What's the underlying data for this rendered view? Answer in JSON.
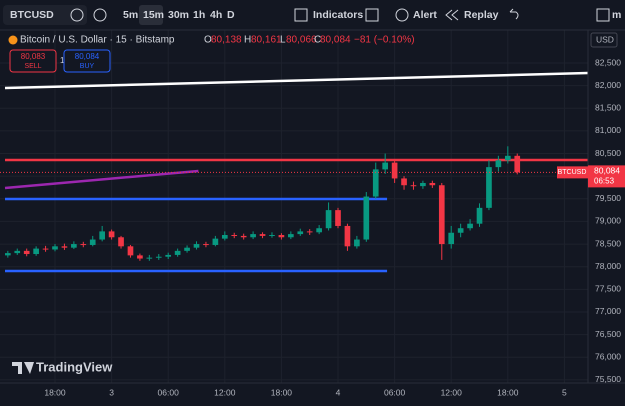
{
  "toolbar": {
    "symbol": "BTCUSD",
    "intervals": [
      "5m",
      "15m",
      "30m",
      "1h",
      "4h",
      "D"
    ],
    "indicators": "Indicators",
    "alert": "Alert",
    "replay": "Replay",
    "more": "m"
  },
  "legend": {
    "title": "Bitcoin / U.S. Dollar · 15 · Bitstamp",
    "o_label": "O",
    "o": "80,138",
    "h_label": "H",
    "h": "80,161",
    "l_label": "L",
    "l": "80,066",
    "c_label": "C",
    "c": "80,084",
    "change": "−81 (−0.10%)"
  },
  "trade": {
    "sell_price": "80,083",
    "sell": "SELL",
    "qty": "1",
    "buy_price": "80,084",
    "buy": "BUY"
  },
  "price_axis": {
    "currency": "USD",
    "tag_symbol": "BTCUSD",
    "tag_price": "80,084",
    "tag_time": "06:53"
  },
  "logo": "TradingView",
  "chart": {
    "type": "candlestick",
    "x": [
      -5,
      -4,
      -3,
      -2,
      -1,
      0,
      1,
      2,
      3,
      4,
      5,
      6,
      7,
      8,
      9,
      10,
      11,
      12,
      13,
      14,
      15,
      16,
      17,
      18,
      19,
      20,
      21,
      22,
      23,
      24,
      25,
      26,
      27,
      28,
      29,
      30,
      31,
      32,
      33,
      34,
      35,
      36,
      37,
      38,
      39,
      40,
      41,
      42,
      43,
      44,
      45,
      46,
      47,
      48,
      49
    ],
    "open": [
      78250,
      78300,
      78350,
      78280,
      78400,
      78380,
      78450,
      78420,
      78500,
      78480,
      78600,
      78780,
      78650,
      78450,
      78250,
      78180,
      78200,
      78220,
      78260,
      78350,
      78420,
      78500,
      78480,
      78620,
      78700,
      78680,
      78650,
      78720,
      78680,
      78700,
      78650,
      78720,
      78780,
      78760,
      78850,
      79250,
      78900,
      78450,
      78600,
      79550,
      80150,
      80300,
      79950,
      79800,
      79780,
      79850,
      79800,
      78500,
      78750,
      78850,
      78950,
      79300,
      80200,
      80350,
      80450
    ],
    "high": [
      78350,
      78400,
      78400,
      78450,
      78460,
      78500,
      78510,
      78560,
      78550,
      78680,
      78900,
      78820,
      78680,
      78480,
      78290,
      78260,
      78280,
      78310,
      78400,
      78470,
      78560,
      78550,
      78680,
      78780,
      78750,
      78730,
      78780,
      78760,
      78760,
      78740,
      78780,
      78840,
      78830,
      78920,
      79420,
      79300,
      78950,
      78680,
      79650,
      80300,
      80500,
      80350,
      80000,
      79880,
      79900,
      79900,
      79850,
      78900,
      78950,
      79050,
      79400,
      80350,
      80450,
      80660,
      80500
    ],
    "low": [
      78200,
      78260,
      78230,
      78240,
      78330,
      78340,
      78370,
      78390,
      78430,
      78450,
      78560,
      78600,
      78400,
      78200,
      78130,
      78130,
      78150,
      78170,
      78220,
      78310,
      78380,
      78430,
      78450,
      78580,
      78630,
      78600,
      78610,
      78630,
      78640,
      78600,
      78610,
      78680,
      78700,
      78720,
      78800,
      78850,
      78350,
      78400,
      78550,
      79500,
      80050,
      79850,
      79700,
      79700,
      79720,
      79740,
      78150,
      78400,
      78650,
      78800,
      78880,
      79250,
      80100,
      80280,
      80040
    ],
    "close": [
      78300,
      78350,
      78280,
      78400,
      78380,
      78450,
      78420,
      78500,
      78480,
      78600,
      78780,
      78650,
      78450,
      78250,
      78180,
      78200,
      78220,
      78260,
      78350,
      78420,
      78500,
      78480,
      78620,
      78700,
      78680,
      78650,
      78720,
      78680,
      78700,
      78650,
      78720,
      78780,
      78760,
      78850,
      79250,
      78900,
      78450,
      78600,
      79550,
      80150,
      80300,
      79950,
      79800,
      79780,
      79850,
      79800,
      78500,
      78750,
      78850,
      78950,
      79300,
      80200,
      80350,
      80450,
      80084
    ],
    "up_color": "#089981",
    "down_color": "#f23645",
    "xlim": [
      -5.83,
      56.5
    ],
    "ylim": [
      75430,
      83230
    ],
    "yticks": [
      {
        "value": 82500,
        "label": "82,500"
      },
      {
        "value": 82000,
        "label": "82,000"
      },
      {
        "value": 81500,
        "label": "81,500"
      },
      {
        "value": 81000,
        "label": "81,000"
      },
      {
        "value": 80500,
        "label": "80,500"
      },
      {
        "value": 80000,
        "label": "80,000"
      },
      {
        "value": 79500,
        "label": "79,500"
      },
      {
        "value": 79000,
        "label": "79,000"
      },
      {
        "value": 78500,
        "label": "78,500"
      },
      {
        "value": 78000,
        "label": "78,000"
      },
      {
        "value": 77500,
        "label": "77,500"
      },
      {
        "value": 77000,
        "label": "77,000"
      },
      {
        "value": 76500,
        "label": "76,500"
      },
      {
        "value": 76000,
        "label": "76,000"
      },
      {
        "value": 75500,
        "label": "75,500"
      }
    ],
    "xticks": [
      {
        "value": 0,
        "label": "18:00"
      },
      {
        "value": 6,
        "label": "3"
      },
      {
        "value": 12,
        "label": "06:00"
      },
      {
        "value": 18,
        "label": "12:00"
      },
      {
        "value": 24,
        "label": "18:00"
      },
      {
        "value": 30,
        "label": "4"
      },
      {
        "value": 36,
        "label": "06:00"
      },
      {
        "value": 42,
        "label": "12:00"
      },
      {
        "value": 48,
        "label": "18:00"
      },
      {
        "value": 54,
        "label": "5"
      }
    ],
    "grid": true,
    "drawings": [
      {
        "color": "#ffffff",
        "x": [
          -5.3,
          56.5
        ],
        "price": [
          81948,
          82279
        ]
      },
      {
        "color": "#f23645",
        "x": [
          -5.3,
          56.5
        ],
        "price": [
          80358,
          80358
        ]
      },
      {
        "color": "#9c27b0",
        "x": [
          -5.3,
          15.2
        ],
        "price": [
          79740,
          80115
        ]
      },
      {
        "color": "#2962ff",
        "x": [
          -5.3,
          35.2
        ],
        "price": [
          79497,
          79497
        ]
      },
      {
        "color": "#2962ff",
        "x": [
          -5.3,
          35.2
        ],
        "price": [
          77906,
          77906
        ]
      }
    ]
  }
}
